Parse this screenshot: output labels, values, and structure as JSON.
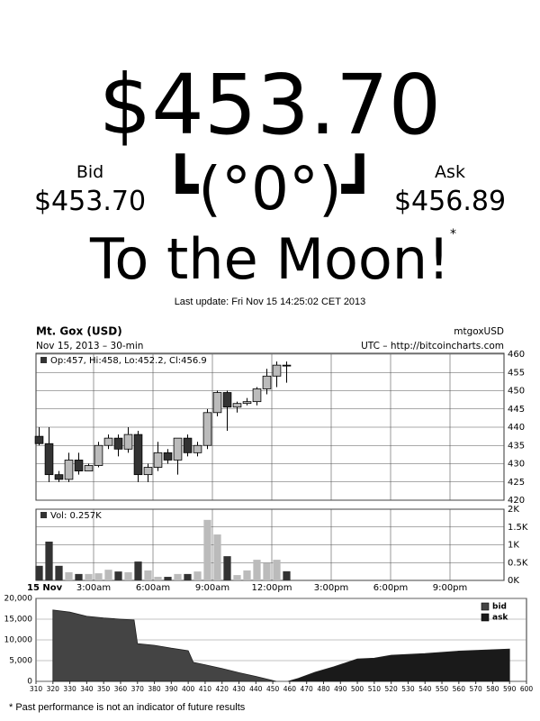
{
  "header": {
    "price": "$453.70",
    "bid_label": "Bid",
    "bid": "$453.70",
    "ask_label": "Ask",
    "ask": "$456.89",
    "emoticon": "┗(°0°)┛",
    "slogan": "To the Moon!",
    "asterisk": "*",
    "last_update": "Last update: Fri Nov 15 14:25:02 CET 2013"
  },
  "chart_data": [
    {
      "type": "candlestick",
      "title": "Mt. Gox (USD)",
      "subtitle": "Nov 15, 2013 – 30-min",
      "symbol": "mtgoxUSD",
      "source": "UTC – http://bitcoincharts.com",
      "legend": "Op:457, Hi:458, Lo:452.2, Cl:456.9",
      "x": [
        0,
        0.5,
        1,
        1.5,
        2,
        2.5,
        3,
        3.5,
        4,
        4.5,
        5,
        5.5,
        6,
        6.5,
        7,
        7.5,
        8,
        8.5,
        9,
        9.5,
        10,
        10.5,
        11,
        11.5,
        12,
        12.5
      ],
      "open": [
        437.5,
        435.5,
        427,
        425.7,
        431,
        428,
        429.5,
        435,
        437,
        434,
        438,
        427,
        429,
        433,
        431,
        437,
        433,
        435,
        444,
        449.5,
        445.5,
        446.5,
        447,
        450.5,
        454,
        457
      ],
      "high": [
        440,
        440,
        428,
        433,
        433,
        430,
        436,
        438,
        438,
        440,
        439,
        430,
        436,
        434,
        437,
        438,
        436,
        445,
        450,
        450,
        447,
        448,
        451,
        456,
        458,
        458
      ],
      "low": [
        435,
        425,
        425,
        425,
        427,
        428,
        429,
        434,
        432,
        433,
        425,
        425,
        428,
        430,
        427,
        432,
        432,
        434,
        443,
        439,
        444,
        446,
        446,
        449,
        451,
        452.2
      ],
      "close": [
        435.5,
        427,
        425.7,
        431,
        428,
        429.5,
        435,
        437,
        434,
        438,
        427,
        429,
        433,
        431,
        437,
        433,
        435,
        444,
        449.5,
        445.5,
        446.5,
        447,
        450.5,
        454,
        457,
        456.9
      ],
      "up_color": "#bbbbbb",
      "down_color": "#333333",
      "xlim": [
        0,
        24
      ],
      "xticks": [
        {
          "value": 0,
          "label": "15 Nov"
        },
        {
          "value": 3,
          "label": "3:00am"
        },
        {
          "value": 6,
          "label": "6:00am"
        },
        {
          "value": 9,
          "label": "9:00am"
        },
        {
          "value": 12,
          "label": "12:00pm"
        },
        {
          "value": 15,
          "label": "3:00pm"
        },
        {
          "value": 18,
          "label": "6:00pm"
        },
        {
          "value": 21,
          "label": "9:00pm"
        }
      ],
      "ylim": [
        420,
        460
      ],
      "yticks": [
        420,
        425,
        430,
        435,
        440,
        445,
        450,
        455,
        460
      ],
      "grid": true
    },
    {
      "type": "bar",
      "legend": "Vol: 0.257K",
      "x": [
        0,
        0.5,
        1,
        1.5,
        2,
        2.5,
        3,
        3.5,
        4,
        4.5,
        5,
        5.5,
        6,
        6.5,
        7,
        7.5,
        8,
        8.5,
        9,
        9.5,
        10,
        10.5,
        11,
        11.5,
        12,
        12.5
      ],
      "values": [
        0.41,
        1.09,
        0.41,
        0.23,
        0.18,
        0.18,
        0.2,
        0.3,
        0.25,
        0.23,
        0.53,
        0.28,
        0.1,
        0.1,
        0.18,
        0.18,
        0.25,
        1.7,
        1.29,
        0.68,
        0.15,
        0.28,
        0.58,
        0.5,
        0.58,
        0.257
      ],
      "xlim": [
        0,
        24
      ],
      "ylim": [
        0,
        2
      ],
      "yticks": [
        {
          "value": 0,
          "label": "0K"
        },
        {
          "value": 0.5,
          "label": "0.5K"
        },
        {
          "value": 1,
          "label": "1K"
        },
        {
          "value": 1.5,
          "label": "1.5K"
        },
        {
          "value": 2,
          "label": "2K"
        }
      ],
      "grid": true
    },
    {
      "type": "area",
      "legend_position": "top-right",
      "series": [
        {
          "name": "bid",
          "color": "#444444",
          "x": [
            320,
            330,
            340,
            350,
            360,
            368,
            370,
            380,
            390,
            400,
            403,
            410,
            420,
            430,
            440,
            448,
            452
          ],
          "values": [
            17200,
            16700,
            15700,
            15300,
            15000,
            14800,
            9100,
            8700,
            8000,
            7400,
            4600,
            4000,
            3100,
            2100,
            1200,
            400,
            0
          ]
        },
        {
          "name": "ask",
          "color": "#1a1a1a",
          "x": [
            459,
            465,
            475,
            486,
            500,
            510,
            520,
            540,
            560,
            590
          ],
          "values": [
            0,
            700,
            2200,
            3500,
            5400,
            5600,
            6300,
            6700,
            7300,
            7800
          ]
        }
      ],
      "xlim": [
        310,
        600
      ],
      "xticks": [
        310,
        320,
        330,
        340,
        350,
        360,
        370,
        380,
        390,
        400,
        410,
        420,
        430,
        440,
        450,
        460,
        470,
        480,
        490,
        500,
        510,
        520,
        530,
        540,
        550,
        560,
        570,
        580,
        590,
        600
      ],
      "ylim": [
        0,
        20000
      ],
      "yticks": [
        0,
        {
          "value": 5000,
          "label": "5,000"
        },
        {
          "value": 10000,
          "label": "10,000"
        },
        {
          "value": 15000,
          "label": "15,000"
        },
        {
          "value": 20000,
          "label": "20,000"
        }
      ],
      "grid": true
    }
  ],
  "footer": {
    "note": "* Past performance is not an indicator of future results"
  }
}
